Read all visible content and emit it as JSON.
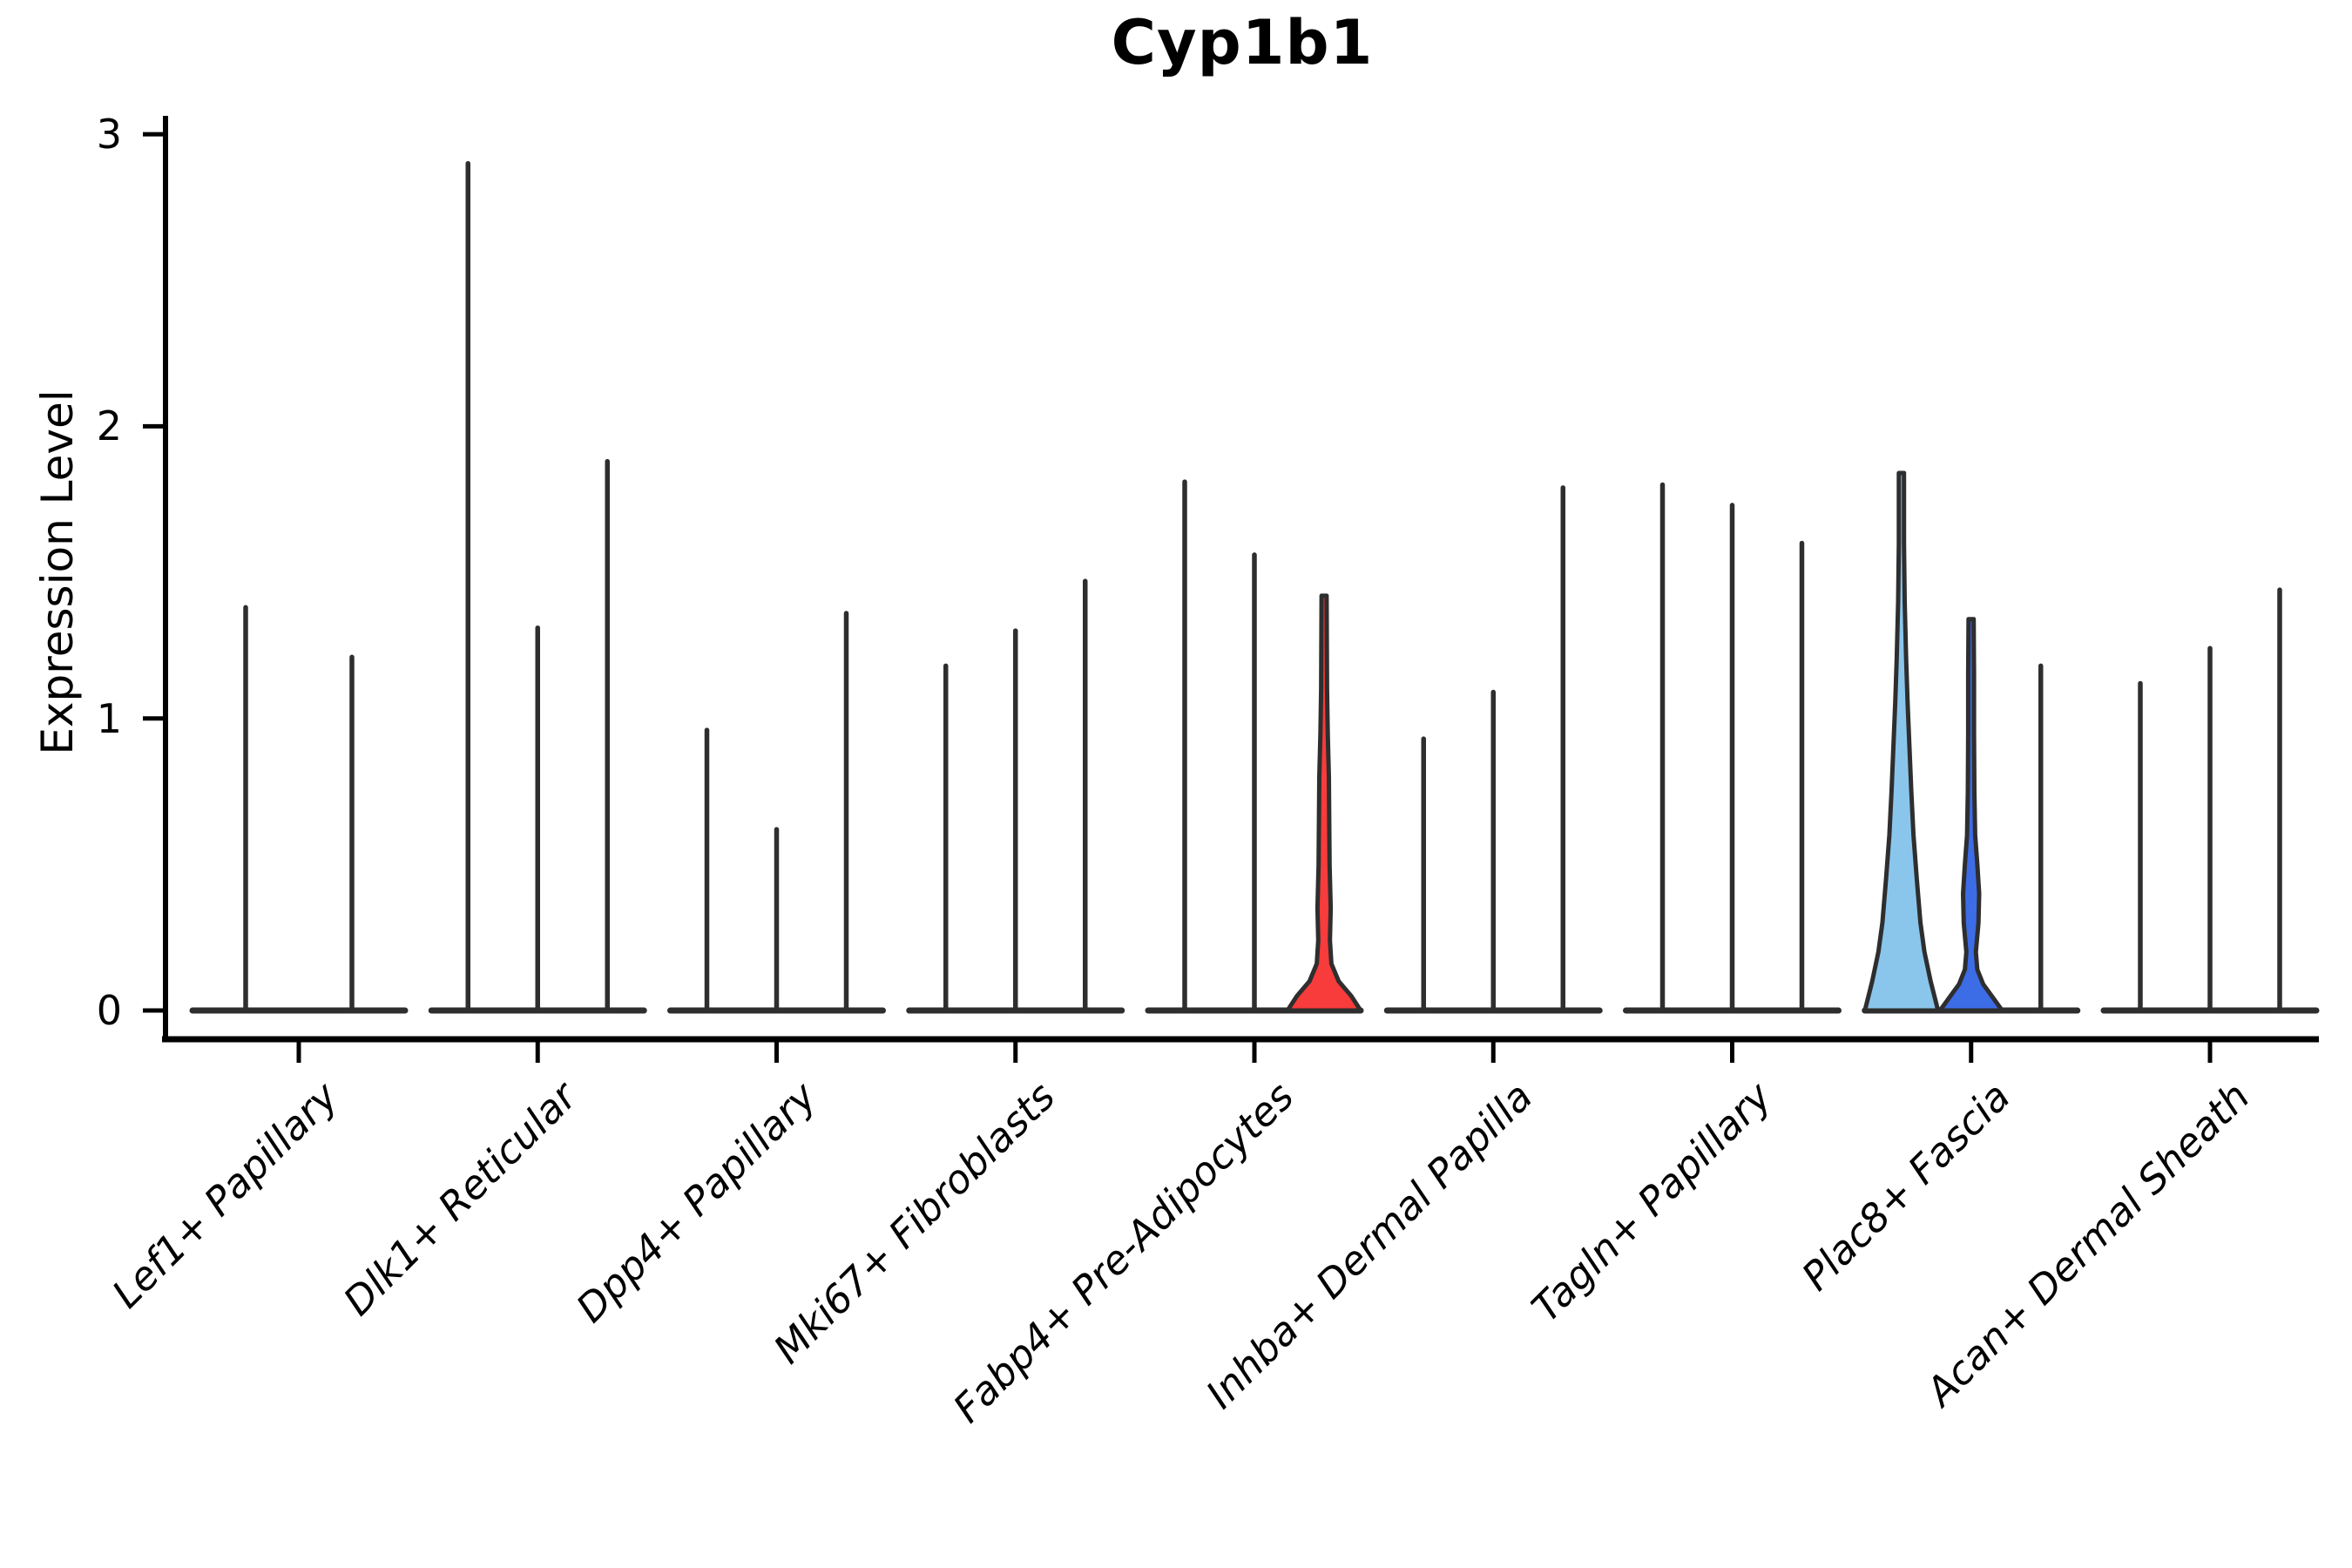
{
  "chart_data": {
    "type": "violin",
    "title": "Cyp1b1",
    "ylabel": "Expression Level",
    "xlabel": "",
    "ylim": [
      0,
      3.1
    ],
    "yticks": [
      0,
      1,
      2,
      3
    ],
    "grid": false,
    "legend": "none",
    "outline_color": "#2e2e2e",
    "axis_color": "#000000",
    "background_color": "#ffffff",
    "categories": [
      {
        "label": "Lef1+ Papillary",
        "violins": [
          {
            "max": 1.38
          },
          {
            "max": 1.21
          }
        ]
      },
      {
        "label": "Dlk1+ Reticular",
        "violins": [
          {
            "max": 2.9
          },
          {
            "max": 1.31
          },
          {
            "max": 1.88
          }
        ]
      },
      {
        "label": "Dpp4+ Papillary",
        "violins": [
          {
            "max": 0.96
          },
          {
            "max": 0.62
          },
          {
            "max": 1.36
          }
        ]
      },
      {
        "label": "Mki67+ Fibroblasts",
        "violins": [
          {
            "max": 1.18
          },
          {
            "max": 1.3
          },
          {
            "max": 1.47
          }
        ]
      },
      {
        "label": "Fabp4+ Pre-Adipocytes",
        "violins": [
          {
            "max": 1.81
          },
          {
            "max": 1.56
          },
          {
            "max": 1.42,
            "fill": "#f83b3b",
            "profile": [
              [
                0,
                1.0
              ],
              [
                0.05,
                0.74
              ],
              [
                0.1,
                0.4
              ],
              [
                0.16,
                0.2
              ],
              [
                0.24,
                0.16
              ],
              [
                0.35,
                0.18
              ],
              [
                0.5,
                0.15
              ],
              [
                0.65,
                0.14
              ],
              [
                0.8,
                0.13
              ],
              [
                0.95,
                0.1
              ],
              [
                1.1,
                0.08
              ],
              [
                1.42,
                0.07
              ]
            ]
          }
        ]
      },
      {
        "label": "Inhba+ Dermal Papilla",
        "violins": [
          {
            "max": 0.93
          },
          {
            "max": 1.09
          },
          {
            "max": 1.79
          }
        ]
      },
      {
        "label": "Tagln+ Papillary",
        "violins": [
          {
            "max": 1.8
          },
          {
            "max": 1.73
          },
          {
            "max": 1.6
          }
        ]
      },
      {
        "label": "Plac8+ Fascia",
        "violins": [
          {
            "max": 1.84,
            "fill": "#8ac6ec",
            "profile": [
              [
                0,
                1.0
              ],
              [
                0.1,
                0.8
              ],
              [
                0.2,
                0.63
              ],
              [
                0.3,
                0.52
              ],
              [
                0.45,
                0.42
              ],
              [
                0.6,
                0.33
              ],
              [
                0.75,
                0.27
              ],
              [
                0.9,
                0.22
              ],
              [
                1.05,
                0.17
              ],
              [
                1.2,
                0.13
              ],
              [
                1.4,
                0.09
              ],
              [
                1.6,
                0.07
              ],
              [
                1.84,
                0.07
              ]
            ]
          },
          {
            "max": 1.34,
            "fill": "#3d6ce7",
            "profile": [
              [
                0,
                0.85
              ],
              [
                0.04,
                0.62
              ],
              [
                0.09,
                0.33
              ],
              [
                0.14,
                0.17
              ],
              [
                0.2,
                0.13
              ],
              [
                0.3,
                0.2
              ],
              [
                0.4,
                0.22
              ],
              [
                0.5,
                0.17
              ],
              [
                0.6,
                0.11
              ],
              [
                0.75,
                0.09
              ],
              [
                0.95,
                0.08
              ],
              [
                1.15,
                0.08
              ],
              [
                1.34,
                0.07
              ]
            ]
          },
          {
            "max": 1.18
          }
        ]
      },
      {
        "label": "Acan+ Dermal Sheath",
        "violins": [
          {
            "max": 1.12
          },
          {
            "max": 1.24
          },
          {
            "max": 1.44
          }
        ]
      }
    ]
  }
}
